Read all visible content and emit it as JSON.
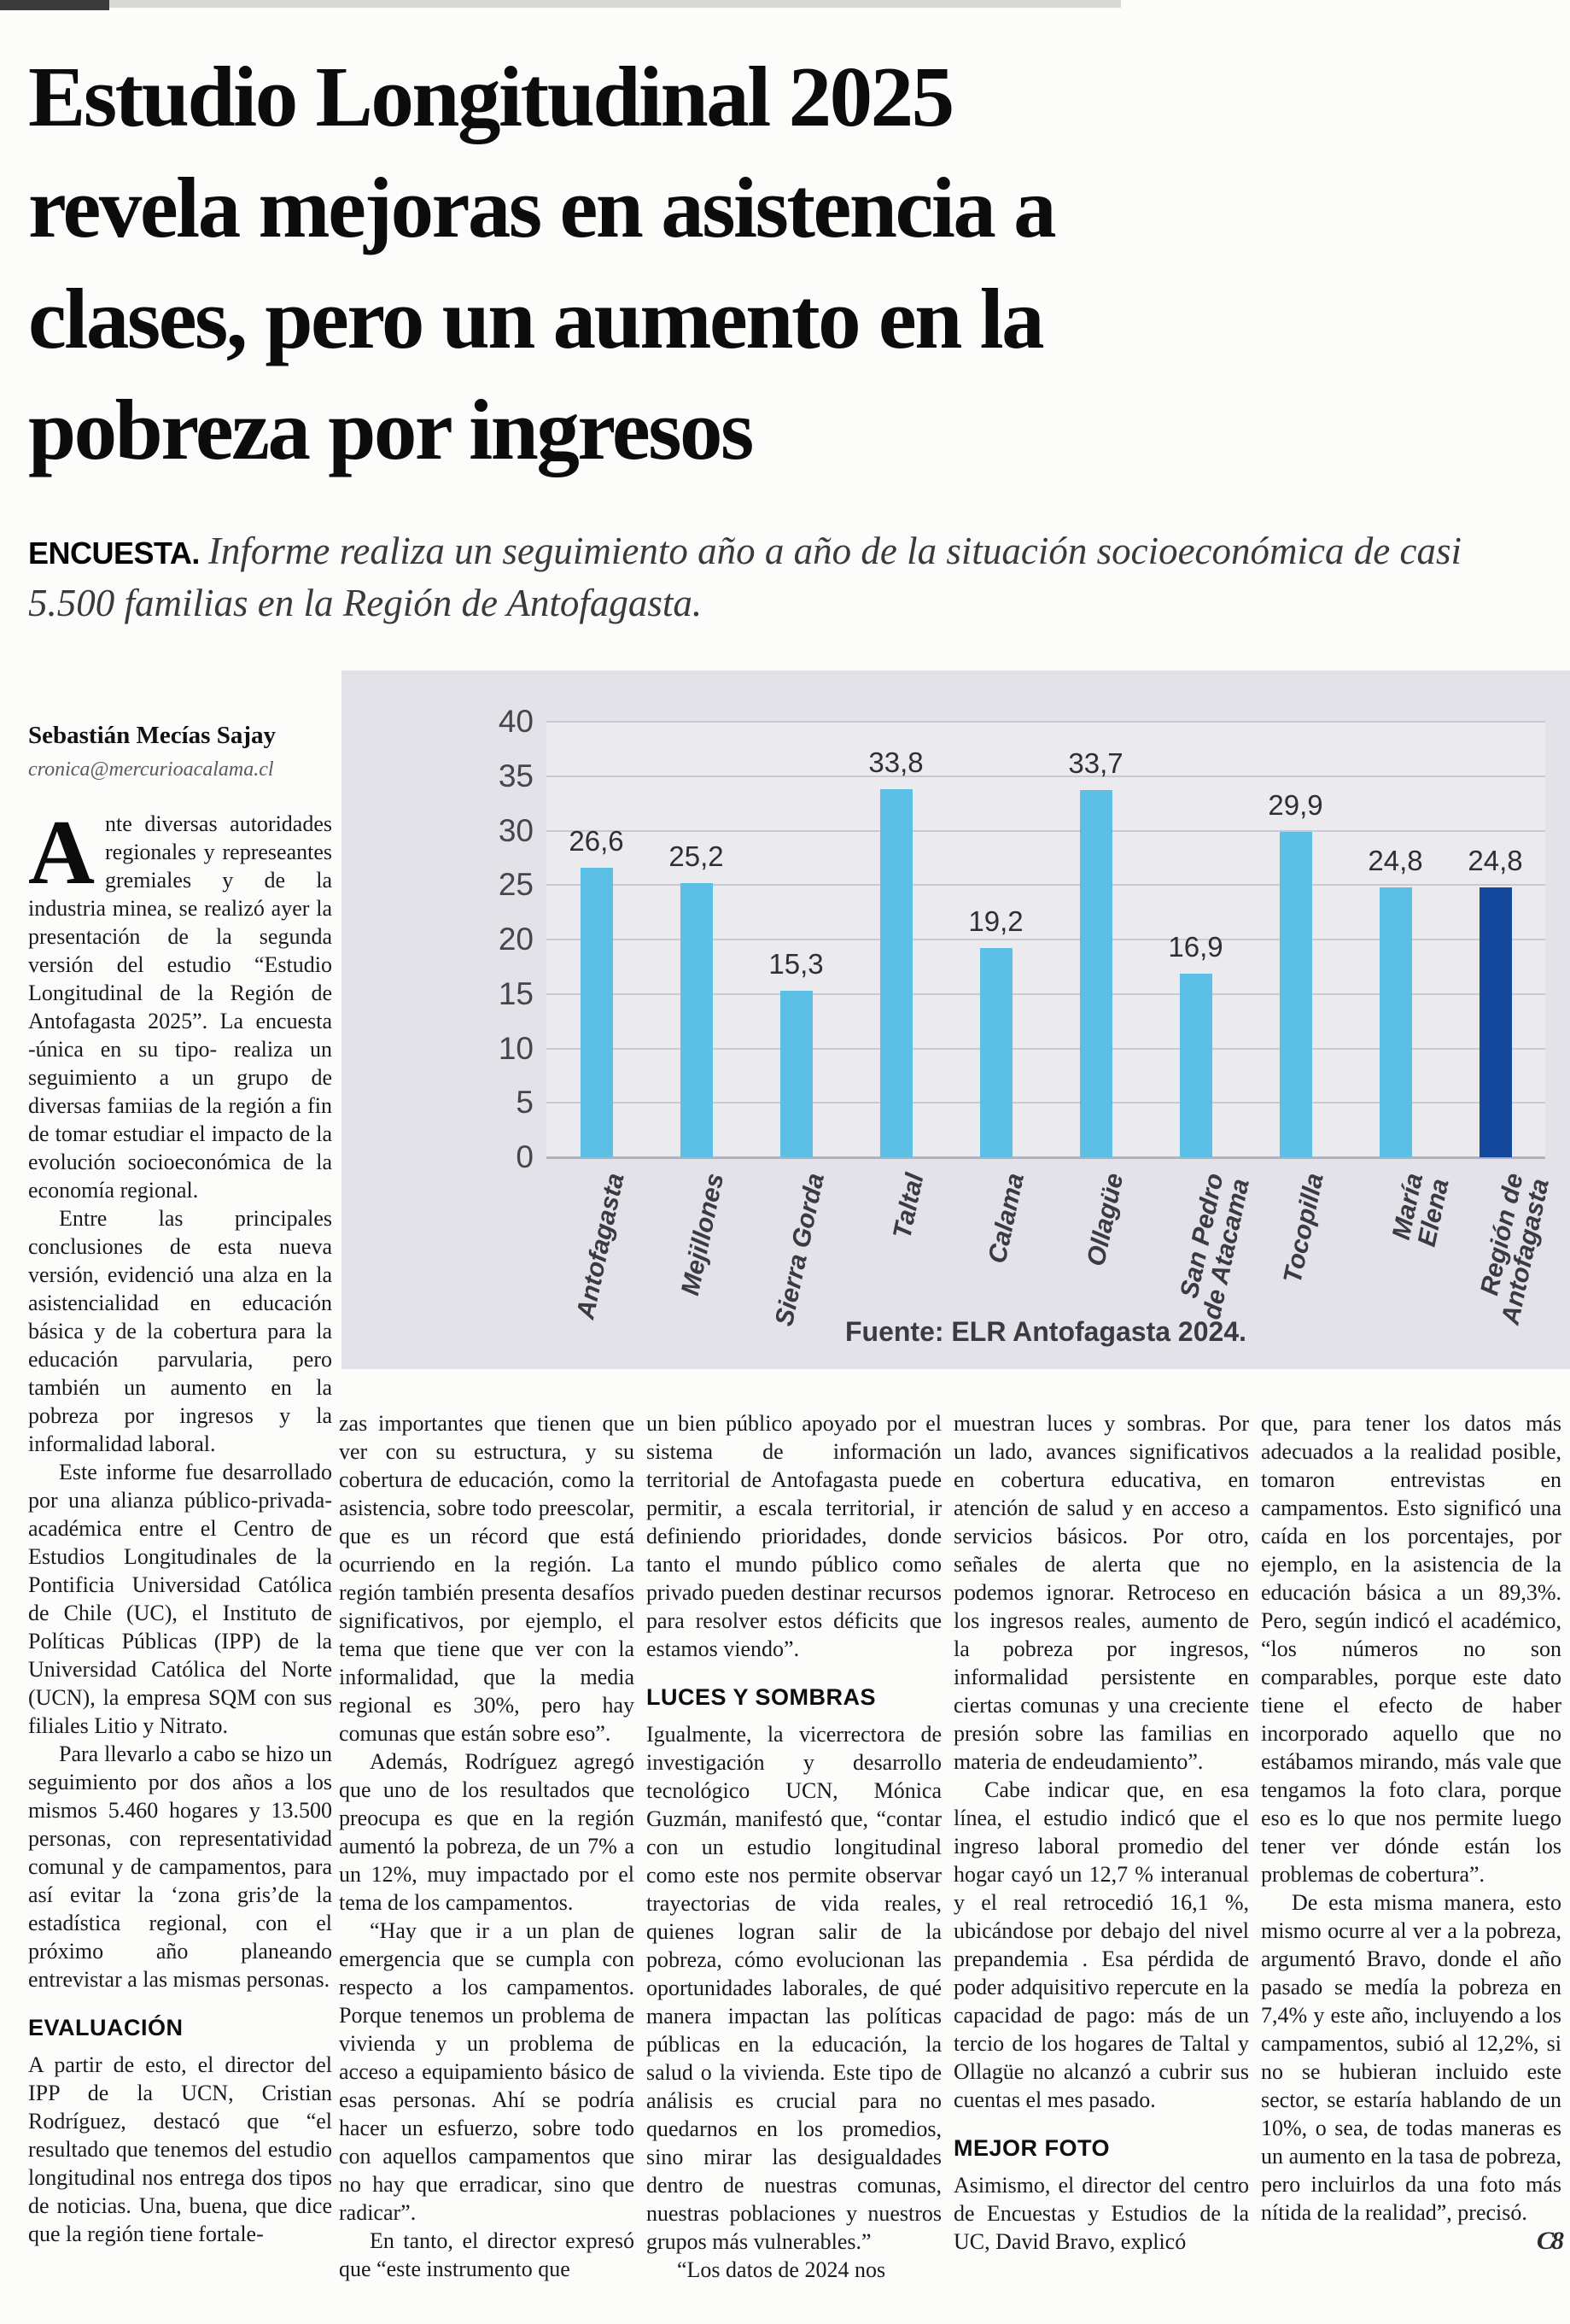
{
  "page": {
    "headline_lines": [
      "Estudio Longitudinal 2025",
      "revela mejoras en asistencia a",
      "clases, pero un aumento en la",
      "pobreza por ingresos"
    ],
    "kicker": "ENCUESTA.",
    "lede": "Informe realiza un seguimiento año a año de la situación socioeconómica de casi 5.500 familias en la Región de Antofagasta.",
    "byline": {
      "author": "Sebastián Mecías Sajay",
      "email": "cronica@mercurioacalama.cl"
    },
    "end_mark": "C8"
  },
  "article": {
    "column1": {
      "dropcap": "A",
      "p1_rest": "nte diversas autoridades regionales y represeantes gremiales y de la industria minea, se realizó ayer la presentación de la segunda versión del estudio “Estudio Longitudinal de la Región de Antofagasta 2025”. La encuesta -única en su tipo- realiza un seguimiento a un grupo de diversas famiias de la región a fin de tomar estudiar el impacto de la evolución socioeconómica de la economía regional.",
      "p2": "Entre las principales conclusiones de esta nueva versión, evidenció una alza en la asistencialidad en educación básica y de la cobertura para la educación parvularia, pero también un aumento en la pobreza por ingresos y la informalidad laboral.",
      "p3": "Este informe fue desarrollado por una alianza público-privada-académica entre el Centro de Estudios Longitudinales de la Pontificia Universidad Católica de Chile (UC), el Instituto de Políticas Públicas (IPP) de la Universidad Católica del Norte (UCN), la empresa SQM con sus filiales Litio y Nitrato.",
      "p4": "Para llevarlo a cabo se hizo un seguimiento por dos años a los mismos 5.460 hogares y 13.500 personas, con representatividad comunal y de campamentos, para así evitar la ‘zona gris’de la estadística regional, con el próximo año planeando entrevistar a las mismas personas.",
      "subhead": "EVALUACIÓN",
      "p5": "A partir de esto, el director del IPP de la UCN, Cristian Rodríguez, destacó que “el resultado que tenemos del estudio longitudinal nos entrega dos tipos de noticias. Una, buena, que dice que la región tiene fortale-"
    },
    "column2": {
      "p1": "zas importantes que tienen que ver con su estructura, y su cobertura de educación, como la asistencia, sobre todo preescolar, que es un récord que está ocurriendo en la región. La región también presenta desafíos significativos, por ejemplo, el tema que tiene que ver con la informalidad, que la media regional es 30%, pero hay comunas que están sobre eso”.",
      "p2": "Además, Rodríguez agregó que uno de los resultados que preocupa es que en la región aumentó la pobreza, de un 7% a un 12%, muy impactado por el tema de los campamentos.",
      "p3": "“Hay que ir a un plan de emergencia que se cumpla con respecto a los campamentos. Porque tenemos un problema de vivienda y un problema de acceso a equipamiento básico de esas personas. Ahí se podría hacer un esfuerzo, sobre todo con aquellos campamentos que no hay que erradicar, sino que radicar”.",
      "p4": "En tanto, el director expresó que “este instrumento que"
    },
    "column3": {
      "p1": "un bien público apoyado por el sistema de información territorial de Antofagasta puede permitir, a escala territorial, ir definiendo prioridades, donde tanto el mundo público como privado pueden destinar recursos para resolver estos déficits que estamos viendo”.",
      "subhead": "LUCES Y SOMBRAS",
      "p2": "Igualmente, la vicerrectora de investigación y desarrollo tecnológico UCN, Mónica Guzmán, manifestó que, “contar con un estudio longitudinal como este nos permite observar trayectorias de vida reales, quienes logran salir de la pobreza, cómo evolucionan las oportunidades laborales, de qué manera impactan las políticas públicas en la educación, la salud o la vivienda. Este tipo de análisis es crucial para no quedarnos en los promedios, sino mirar las desigualdades dentro de nuestras comunas, nuestras poblaciones y nuestros grupos más vulnerables.”",
      "p3": "“Los datos de 2024 nos"
    },
    "column4": {
      "p1": "muestran luces y sombras. Por un lado, avances significativos en cobertura educativa, en atención de salud y en acceso a servicios básicos. Por otro, señales de alerta que no podemos ignorar. Retroceso en los ingresos reales, aumento de la pobreza por ingresos, informalidad persistente en ciertas comunas y una creciente presión sobre las familias en materia de endeudamiento”.",
      "p2": "Cabe indicar que, en esa línea, el estudio indicó que el ingreso laboral promedio del hogar cayó un 12,7 % interanual y el real retrocedió 16,1 %, ubicándose por debajo del nivel prepandemia . Esa pérdida de poder adquisitivo repercute en la capacidad de pago: más de un tercio de los hogares de Taltal y Ollagüe no alcanzó a cubrir sus cuentas el mes pasado.",
      "subhead": "MEJOR FOTO",
      "p3": "Asimismo, el director del centro de Encuestas y Estudios de la UC, David Bravo, explicó"
    },
    "column5": {
      "p1": "que, para tener los datos más adecuados a la realidad posible, tomaron entrevistas en campamentos. Esto significó una caída en los porcentajes, por ejemplo, en la asistencia de la educación básica a un 89,3%. Pero, según indicó el académico, “los números no son comparables, porque este dato tiene el efecto de haber incorporado aquello que no estábamos mirando, más vale que tengamos la foto clara, porque eso es lo que nos permite luego tener ver dónde están los problemas de cobertura”.",
      "p2": "De esta misma manera, esto mismo ocurre al ver a la pobreza, argumentó Bravo, donde el año pasado se medía la pobreza en 7,4% y este año, incluyendo a los campamentos, subió al 12,2%, si no se hubieran incluido este sector, se estaría hablando de un 10%, o sea, de todas maneras es un aumento en la tasa de pobreza, pero incluirlos da una foto más nítida de la realidad”, precisó."
    }
  },
  "chart_data": {
    "type": "bar",
    "categories": [
      "Antofagasta",
      "Mejillones",
      "Sierra Gorda",
      "Taltal",
      "Calama",
      "Ollagüe",
      "San Pedro\nde Atacama",
      "Tocopilla",
      "María\nElena",
      "Región de\nAntofagasta"
    ],
    "values": [
      26.6,
      25.2,
      15.3,
      33.8,
      19.2,
      33.7,
      16.9,
      29.9,
      24.8,
      24.8
    ],
    "value_labels": [
      "26,6",
      "25,2",
      "15,3",
      "33,8",
      "19,2",
      "33,7",
      "16,9",
      "29,9",
      "24,8",
      "24,8"
    ],
    "title": "",
    "xlabel": "",
    "ylabel": "",
    "ylim": [
      0,
      40
    ],
    "ytick_step": 5,
    "grid": true,
    "legend_position": "none",
    "bar_color": "#5cbfe5",
    "highlight_color": "#15499d",
    "highlight_index": 9,
    "source": "Fuente: ELR Antofagasta 2024."
  }
}
